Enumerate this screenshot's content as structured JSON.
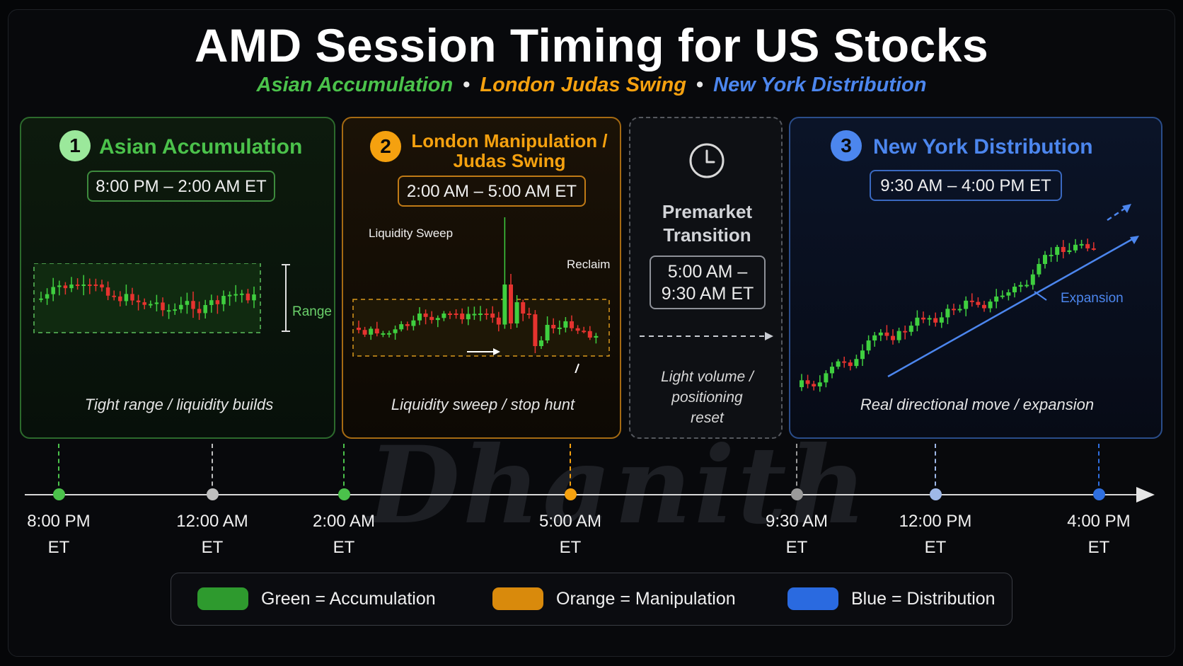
{
  "title": "AMD Session Timing for US Stocks",
  "subtitle": {
    "accumulation": "Asian Accumulation",
    "manipulation": "London Judas Swing",
    "distribution": "New York Distribution",
    "separator": "•"
  },
  "colors": {
    "accumulation": "#4bc24b",
    "manipulation": "#f5a10f",
    "distribution": "#4c86ee",
    "transition": "#c9ccd2"
  },
  "panels": {
    "asian": {
      "number": "1",
      "title": "Asian Accumulation",
      "time": "8:00 PM – 2:00 AM ET",
      "range_label": "Range",
      "caption": "Tight range / liquidity builds"
    },
    "london": {
      "number": "2",
      "title_line1": "London Manipulation /",
      "title_line2": "Judas Swing",
      "time": "2:00 AM – 5:00 AM ET",
      "sweep_label": "Liquidity Sweep",
      "reclaim_label": "Reclaim",
      "caption": "Liquidity sweep / stop hunt"
    },
    "premarket": {
      "icon": "clock-icon",
      "title_line1": "Premarket",
      "title_line2": "Transition",
      "time_line1": "5:00 AM –",
      "time_line2": "9:30 AM ET",
      "caption_line1": "Light volume /",
      "caption_line2": "positioning",
      "caption_line3": "reset"
    },
    "newyork": {
      "number": "3",
      "title": "New York Distribution",
      "time": "9:30 AM – 4:00 PM ET",
      "expansion_label": "Expansion",
      "caption": "Real directional move / expansion"
    }
  },
  "timeline": [
    {
      "time": "8:00 PM",
      "zone": "ET",
      "color": "#4bc24b"
    },
    {
      "time": "12:00 AM",
      "zone": "ET",
      "color": "#bfbfbf"
    },
    {
      "time": "2:00 AM",
      "zone": "ET",
      "color": "#4bc24b"
    },
    {
      "time": "5:00 AM",
      "zone": "ET",
      "color": "#f5a10f"
    },
    {
      "time": "9:30 AM",
      "zone": "ET",
      "color": "#9a9a9a"
    },
    {
      "time": "12:00 PM",
      "zone": "ET",
      "color": "#9fb8e8"
    },
    {
      "time": "4:00 PM",
      "zone": "ET",
      "color": "#2f6fe0"
    }
  ],
  "legend": [
    {
      "label": "Green = Accumulation",
      "color": "#2e9a2e"
    },
    {
      "label": "Orange = Manipulation",
      "color": "#d98a0c"
    },
    {
      "label": "Blue = Distribution",
      "color": "#2a6ae0"
    }
  ],
  "watermark": "Dhanith"
}
